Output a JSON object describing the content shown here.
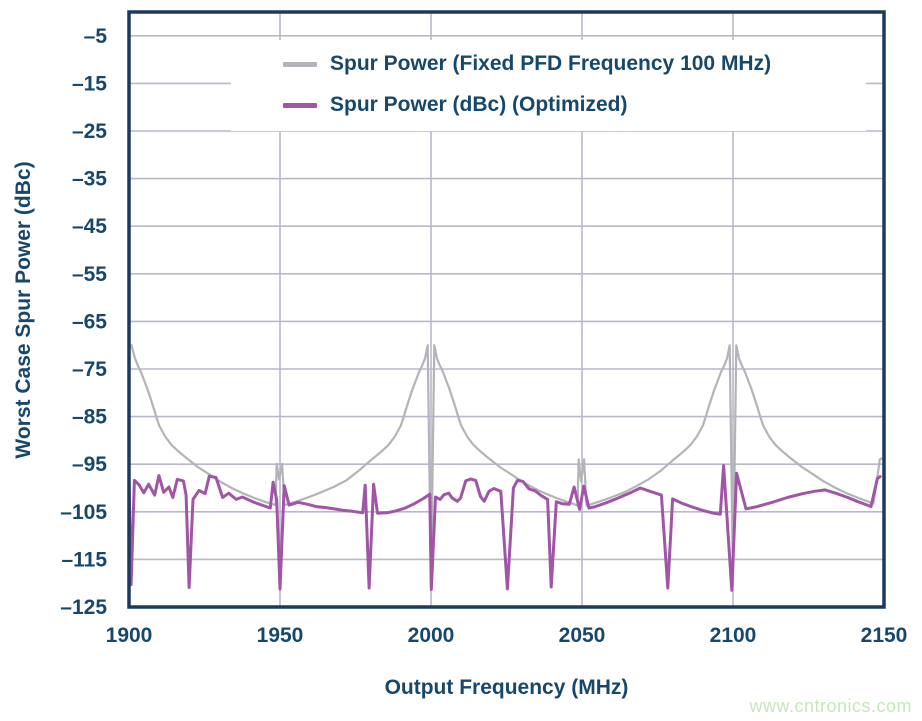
{
  "colors": {
    "background": "#ffffff",
    "text_navy": "#17486b",
    "plot_border": "#1b3a5e",
    "grid": "#b7b9c9",
    "series_fixed_gray": "#b3b3ba",
    "series_optimized_purple": "#a055a6",
    "watermark_green": "#c6e7ba"
  },
  "watermark": "www.cntronics.com",
  "chart_data": {
    "type": "line",
    "title": "",
    "xlabel": "Output Frequency (MHz)",
    "ylabel": "Worst Case Spur Power (dBc)",
    "xlim": [
      1900,
      2150
    ],
    "ylim": [
      -125,
      0
    ],
    "grid": true,
    "x_ticks": [
      1900,
      1950,
      2000,
      2050,
      2100,
      2150
    ],
    "x_tick_labels": [
      "1900",
      "1950",
      "2000",
      "2050",
      "2100",
      "2150"
    ],
    "y_ticks": [
      -5,
      -15,
      -25,
      -35,
      -45,
      -55,
      -65,
      -75,
      -85,
      -95,
      -105,
      -115,
      -125
    ],
    "y_tick_labels": [
      "–5",
      "–15",
      "–25",
      "–35",
      "–45",
      "–55",
      "–65",
      "–75",
      "–85",
      "–95",
      "–105",
      "–115",
      "–125"
    ],
    "legend": {
      "position": "top-inside",
      "background": "#ffffff"
    },
    "series": [
      {
        "name": "Spur Power (Fixed PFD Frequency 100 MHz)",
        "color": "#b3b3ba",
        "width": 2.2,
        "points": [
          [
            1900,
            -70.3
          ],
          [
            1900.8,
            -70
          ],
          [
            1902,
            -72.8
          ],
          [
            1903,
            -74.4
          ],
          [
            1904,
            -75.7
          ],
          [
            1905,
            -77.4
          ],
          [
            1906,
            -79
          ],
          [
            1907,
            -80.9
          ],
          [
            1908,
            -82.9
          ],
          [
            1909,
            -85
          ],
          [
            1910,
            -86.9
          ],
          [
            1912,
            -89.2
          ],
          [
            1914,
            -90.9
          ],
          [
            1916,
            -92.1
          ],
          [
            1918,
            -93.2
          ],
          [
            1920,
            -94.2
          ],
          [
            1923,
            -95.7
          ],
          [
            1926,
            -96.9
          ],
          [
            1930,
            -98.6
          ],
          [
            1934,
            -100
          ],
          [
            1938,
            -101.2
          ],
          [
            1942,
            -102.2
          ],
          [
            1945,
            -102.9
          ],
          [
            1947,
            -103.3
          ],
          [
            1948.5,
            -103.6
          ],
          [
            1948.9,
            -94.9
          ],
          [
            1949.7,
            -98.2
          ],
          [
            1950.7,
            -94.9
          ],
          [
            1951.5,
            -103.6
          ],
          [
            1953,
            -103.3
          ],
          [
            1956,
            -102.7
          ],
          [
            1960,
            -101.8
          ],
          [
            1964,
            -100.8
          ],
          [
            1968,
            -99.7
          ],
          [
            1972,
            -98.4
          ],
          [
            1976,
            -96.4
          ],
          [
            1980,
            -94.2
          ],
          [
            1982,
            -93.2
          ],
          [
            1984,
            -92.1
          ],
          [
            1986,
            -90.9
          ],
          [
            1988,
            -89.2
          ],
          [
            1990,
            -86.9
          ],
          [
            1991,
            -85
          ],
          [
            1992,
            -82.9
          ],
          [
            1993,
            -80.9
          ],
          [
            1994,
            -79
          ],
          [
            1995,
            -77.4
          ],
          [
            1996,
            -75.7
          ],
          [
            1997,
            -74.4
          ],
          [
            1998,
            -72.8
          ],
          [
            1998.9,
            -70
          ],
          [
            2000,
            -120.5
          ],
          [
            2001.1,
            -70
          ],
          [
            2002,
            -72.8
          ],
          [
            2003,
            -74.4
          ],
          [
            2004,
            -75.7
          ],
          [
            2005,
            -77.4
          ],
          [
            2006,
            -79
          ],
          [
            2007,
            -80.9
          ],
          [
            2008,
            -82.9
          ],
          [
            2009,
            -85
          ],
          [
            2010,
            -86.9
          ],
          [
            2012,
            -89.2
          ],
          [
            2014,
            -90.9
          ],
          [
            2016,
            -92.1
          ],
          [
            2018,
            -93.2
          ],
          [
            2020,
            -94.2
          ],
          [
            2023,
            -95.7
          ],
          [
            2026,
            -96.9
          ],
          [
            2030,
            -98.6
          ],
          [
            2034,
            -100
          ],
          [
            2038,
            -101.2
          ],
          [
            2042,
            -102.2
          ],
          [
            2045,
            -102.9
          ],
          [
            2047,
            -103.3
          ],
          [
            2048.5,
            -103.7
          ],
          [
            2048.9,
            -94
          ],
          [
            2049.7,
            -98.6
          ],
          [
            2050.7,
            -94
          ],
          [
            2051.5,
            -103.7
          ],
          [
            2053,
            -103.4
          ],
          [
            2056,
            -102.8
          ],
          [
            2060,
            -101.9
          ],
          [
            2064,
            -100.9
          ],
          [
            2068,
            -99.6
          ],
          [
            2072,
            -98.2
          ],
          [
            2076,
            -96.4
          ],
          [
            2080,
            -94.2
          ],
          [
            2082,
            -93.2
          ],
          [
            2084,
            -92.1
          ],
          [
            2086,
            -90.9
          ],
          [
            2088,
            -89.2
          ],
          [
            2090,
            -86.9
          ],
          [
            2091,
            -85
          ],
          [
            2092,
            -82.9
          ],
          [
            2093,
            -80.9
          ],
          [
            2094,
            -79
          ],
          [
            2095,
            -77.4
          ],
          [
            2096,
            -75.7
          ],
          [
            2097,
            -74.4
          ],
          [
            2098,
            -72.8
          ],
          [
            2098.9,
            -70
          ],
          [
            2100,
            -120.5
          ],
          [
            2101.1,
            -70
          ],
          [
            2102,
            -72.8
          ],
          [
            2103,
            -74.4
          ],
          [
            2104,
            -75.7
          ],
          [
            2105,
            -77.4
          ],
          [
            2106,
            -79
          ],
          [
            2107,
            -80.9
          ],
          [
            2108,
            -82.9
          ],
          [
            2109,
            -85
          ],
          [
            2110,
            -86.9
          ],
          [
            2112,
            -89.2
          ],
          [
            2114,
            -90.9
          ],
          [
            2116,
            -92.1
          ],
          [
            2118,
            -93.2
          ],
          [
            2120,
            -94.2
          ],
          [
            2123,
            -95.7
          ],
          [
            2126,
            -96.9
          ],
          [
            2130,
            -98.6
          ],
          [
            2134,
            -100
          ],
          [
            2138,
            -101.2
          ],
          [
            2142,
            -102.2
          ],
          [
            2145,
            -102.9
          ],
          [
            2146.5,
            -103.3
          ],
          [
            2147.6,
            -98.5
          ],
          [
            2148.6,
            -94
          ],
          [
            2149.2,
            -93.8
          ]
        ]
      },
      {
        "name": "Spur Power (dBc) (Optimized)",
        "color": "#a055a6",
        "width": 3,
        "points": [
          [
            1900,
            -98.3
          ],
          [
            1900.7,
            -120.3
          ],
          [
            1901.8,
            -98.4
          ],
          [
            1903.3,
            -99.3
          ],
          [
            1904.9,
            -101
          ],
          [
            1906.5,
            -99.2
          ],
          [
            1908.5,
            -101.5
          ],
          [
            1909.9,
            -97.4
          ],
          [
            1911.5,
            -100.9
          ],
          [
            1913.2,
            -99.8
          ],
          [
            1914.5,
            -102
          ],
          [
            1916,
            -98.2
          ],
          [
            1918,
            -98.5
          ],
          [
            1918.9,
            -101.5
          ],
          [
            1919.9,
            -120.9
          ],
          [
            1921.2,
            -102.4
          ],
          [
            1923.2,
            -100.5
          ],
          [
            1925.2,
            -101.2
          ],
          [
            1926.6,
            -97.5
          ],
          [
            1928.8,
            -97.8
          ],
          [
            1931,
            -102
          ],
          [
            1933,
            -101.1
          ],
          [
            1935.5,
            -102.4
          ],
          [
            1937.5,
            -101.9
          ],
          [
            1941,
            -102.9
          ],
          [
            1944,
            -103.6
          ],
          [
            1946.8,
            -104.2
          ],
          [
            1947.7,
            -98.8
          ],
          [
            1948.9,
            -102.5
          ],
          [
            1950,
            -121.2
          ],
          [
            1951.4,
            -99.5
          ],
          [
            1953,
            -103.6
          ],
          [
            1956,
            -103
          ],
          [
            1959,
            -103.4
          ],
          [
            1962,
            -103.9
          ],
          [
            1965,
            -104.1
          ],
          [
            1968,
            -104.4
          ],
          [
            1971,
            -104.7
          ],
          [
            1974,
            -104.9
          ],
          [
            1977.4,
            -105.2
          ],
          [
            1978.2,
            -99.4
          ],
          [
            1979.5,
            -121
          ],
          [
            1981,
            -99.2
          ],
          [
            1982.3,
            -105.3
          ],
          [
            1985.5,
            -105.2
          ],
          [
            1988.5,
            -104.8
          ],
          [
            1991.5,
            -104.2
          ],
          [
            1994.5,
            -103.3
          ],
          [
            1997.5,
            -102.2
          ],
          [
            1999.6,
            -101.3
          ],
          [
            2000.1,
            -121.3
          ],
          [
            2001.5,
            -101.9
          ],
          [
            2003,
            -102.4
          ],
          [
            2004.3,
            -101.4
          ],
          [
            2005.9,
            -101.1
          ],
          [
            2007,
            -102.1
          ],
          [
            2008.7,
            -102.8
          ],
          [
            2009.8,
            -102.1
          ],
          [
            2011.5,
            -98.5
          ],
          [
            2013.1,
            -98.1
          ],
          [
            2014.8,
            -98.4
          ],
          [
            2016.4,
            -101.8
          ],
          [
            2017.6,
            -102.8
          ],
          [
            2019.2,
            -100.7
          ],
          [
            2020.8,
            -100.1
          ],
          [
            2023.1,
            -100.7
          ],
          [
            2025.3,
            -121.2
          ],
          [
            2027.3,
            -100
          ],
          [
            2028.6,
            -98.4
          ],
          [
            2030.4,
            -98.6
          ],
          [
            2032.5,
            -100.2
          ],
          [
            2034.5,
            -100.6
          ],
          [
            2036.5,
            -101.6
          ],
          [
            2038.6,
            -102.4
          ],
          [
            2039.8,
            -120.8
          ],
          [
            2041.5,
            -102.9
          ],
          [
            2043.5,
            -103.3
          ],
          [
            2045.8,
            -103.4
          ],
          [
            2047.4,
            -99.8
          ],
          [
            2049.2,
            -104.5
          ],
          [
            2050.6,
            -99.6
          ],
          [
            2052.3,
            -104.2
          ],
          [
            2054,
            -104
          ],
          [
            2058,
            -103.1
          ],
          [
            2062,
            -102.1
          ],
          [
            2066,
            -101
          ],
          [
            2069.3,
            -100
          ],
          [
            2072.5,
            -100.7
          ],
          [
            2076.3,
            -101.5
          ],
          [
            2078.4,
            -121
          ],
          [
            2080,
            -102.3
          ],
          [
            2083,
            -103.2
          ],
          [
            2086.5,
            -104
          ],
          [
            2090,
            -104.7
          ],
          [
            2093.5,
            -105.3
          ],
          [
            2095.8,
            -105.5
          ],
          [
            2096.9,
            -95.3
          ],
          [
            2099.6,
            -121.5
          ],
          [
            2101.2,
            -96.9
          ],
          [
            2104.3,
            -104.4
          ],
          [
            2108,
            -103.9
          ],
          [
            2113,
            -103
          ],
          [
            2118,
            -102
          ],
          [
            2123,
            -101.2
          ],
          [
            2127,
            -100.7
          ],
          [
            2130.5,
            -100.4
          ],
          [
            2134,
            -101.1
          ],
          [
            2138,
            -102
          ],
          [
            2141.5,
            -102.9
          ],
          [
            2144.5,
            -103.6
          ],
          [
            2145.7,
            -103.9
          ],
          [
            2147.8,
            -98
          ],
          [
            2148.7,
            -97.6
          ]
        ]
      }
    ]
  }
}
